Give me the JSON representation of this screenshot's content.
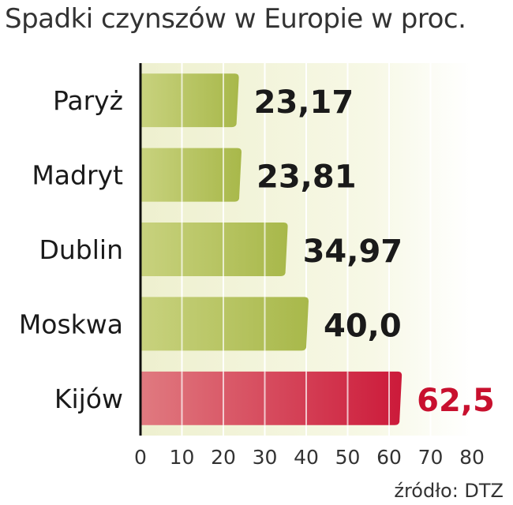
{
  "chart_data": {
    "type": "bar",
    "orientation": "horizontal",
    "title": "Spadki czynszów w Europie w proc.",
    "categories": [
      "Paryż",
      "Madryt",
      "Dublin",
      "Moskwa",
      "Kijów"
    ],
    "values": [
      23.17,
      23.81,
      34.97,
      40.0,
      62.5
    ],
    "value_labels": [
      "23,17",
      "23,81",
      "34,97",
      "40,0",
      "62,5"
    ],
    "highlight_index": 4,
    "xlim": [
      0,
      80
    ],
    "x_ticks": [
      "0",
      "10",
      "20",
      "30",
      "40",
      "50",
      "60",
      "70",
      "80"
    ],
    "grid": true,
    "source": "źródło: DTZ",
    "colors": {
      "bar": "#a8b84a",
      "bar_light": "#c8d27e",
      "highlight": "#cc1a3a",
      "highlight_light": "#e07a80",
      "highlight_label": "#c8102e",
      "label": "#1a1a1a",
      "plot_bg": "#eef0cf"
    }
  }
}
